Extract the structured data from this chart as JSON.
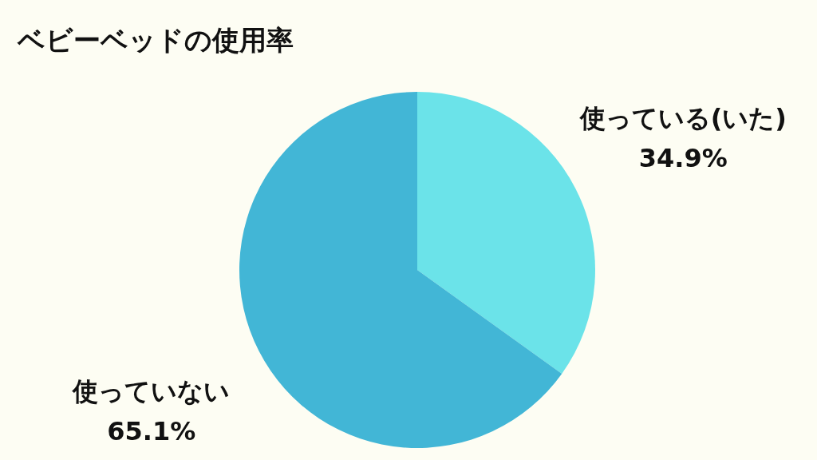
{
  "chart_data": {
    "type": "pie",
    "title": "ベビーベッドの使用率",
    "categories": [
      "使っている(いた)",
      "使っていない"
    ],
    "values": [
      34.9,
      65.1
    ],
    "value_labels": [
      "34.9%",
      "65.1%"
    ],
    "colors": [
      "#6be3e9",
      "#42b6d6"
    ]
  }
}
